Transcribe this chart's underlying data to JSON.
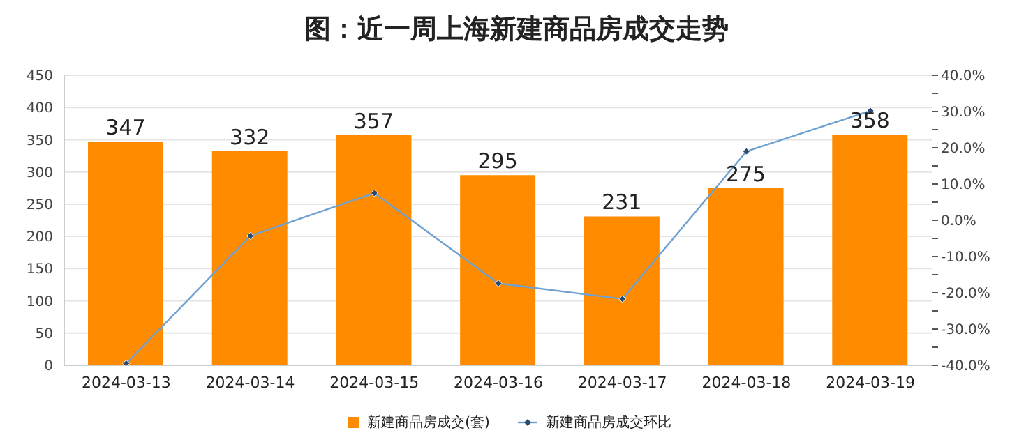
{
  "chart_data": {
    "type": "bar",
    "title": "图：近一周上海新建商品房成交走势",
    "categories": [
      "2024-03-13",
      "2024-03-14",
      "2024-03-15",
      "2024-03-16",
      "2024-03-17",
      "2024-03-18",
      "2024-03-19"
    ],
    "series": [
      {
        "name": "新建商品房成交(套)",
        "color": "#ff8c00",
        "values": [
          347,
          332,
          357,
          295,
          231,
          275,
          358
        ],
        "value_labels": [
          "347",
          "332",
          "357",
          "295",
          "231",
          "275",
          "358"
        ]
      },
      {
        "name": "新建商品房成交环比",
        "type": "line",
        "axis": "y2",
        "color": "#6fa0d0",
        "marker": "diamond",
        "values": [
          -39.5,
          -4.3,
          7.5,
          -17.4,
          -21.7,
          19.0,
          30.2
        ]
      }
    ],
    "ylim": [
      0,
      450
    ],
    "yticks": [
      0,
      50,
      100,
      150,
      200,
      250,
      300,
      350,
      400,
      450
    ],
    "y2lim": [
      -40,
      40
    ],
    "y2ticks": [
      {
        "value": -40,
        "label": "-40.0%"
      },
      {
        "value": -35,
        "label": null
      },
      {
        "value": -30,
        "label": "-30.0%"
      },
      {
        "value": -25,
        "label": null
      },
      {
        "value": -20,
        "label": "-20.0%"
      },
      {
        "value": -15,
        "label": null
      },
      {
        "value": -10,
        "label": "-10.0%"
      },
      {
        "value": -5,
        "label": null
      },
      {
        "value": 0,
        "label": "0.0%"
      },
      {
        "value": 5,
        "label": null
      },
      {
        "value": 10,
        "label": "10.0%"
      },
      {
        "value": 15,
        "label": null
      },
      {
        "value": 20,
        "label": "20.0%"
      },
      {
        "value": 25,
        "label": null
      },
      {
        "value": 30,
        "label": "30.0%"
      },
      {
        "value": 35,
        "label": null
      },
      {
        "value": 40,
        "label": "40.0%"
      }
    ],
    "grid": "y",
    "legend": "bottom"
  }
}
